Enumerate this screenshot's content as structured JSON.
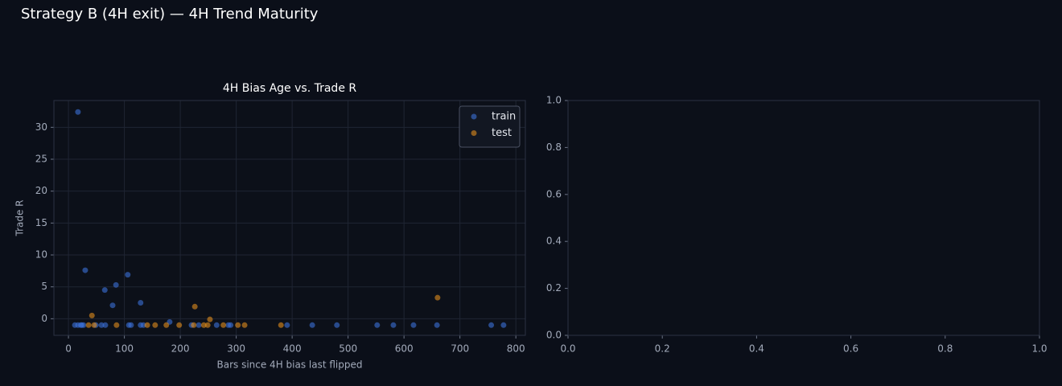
{
  "title": "Strategy B (4H exit) — 4H Trend Maturity",
  "chart_data": [
    {
      "type": "scatter",
      "title": "4H Bias Age vs. Trade R",
      "x_label": "Bars since 4H bias last flipped",
      "y_label": "Trade R",
      "xlim": [
        -26,
        817
      ],
      "ylim": [
        -2.6,
        34.2
      ],
      "xticks": [
        0,
        100,
        200,
        300,
        400,
        500,
        600,
        700,
        800
      ],
      "yticks": [
        0,
        5,
        10,
        15,
        20,
        25,
        30
      ],
      "grid": true,
      "legend": "upper right",
      "series": [
        {
          "name": "train",
          "color": "#3c72d8",
          "x": [
            11.5,
            17,
            22,
            24,
            27,
            49,
            59,
            66,
            108,
            112,
            129,
            134,
            220,
            233,
            265,
            286,
            290,
            391,
            436,
            480,
            552,
            581,
            617,
            659,
            756,
            778,
            17,
            30,
            65,
            85,
            79,
            106,
            129,
            181
          ],
          "values": [
            -1,
            -1,
            -1,
            -1,
            -1,
            -1,
            -1,
            -1,
            -1,
            -1,
            -1,
            -1,
            -1,
            -1,
            -1,
            -1,
            -1,
            -1,
            -1,
            -1,
            -1,
            -1,
            -1,
            -1,
            -1,
            -1,
            32.4,
            7.6,
            4.5,
            5.3,
            2.1,
            6.9,
            2.5,
            -0.5
          ]
        },
        {
          "name": "test",
          "color": "#e38e1c",
          "x": [
            36,
            46,
            86,
            141,
            155,
            175,
            198,
            224,
            242,
            249,
            277,
            303,
            315,
            380,
            42,
            226,
            253,
            660
          ],
          "values": [
            -1,
            -1,
            -1,
            -1,
            -1,
            -1,
            -1,
            -1,
            -1,
            -1,
            -1,
            -1,
            -1,
            -1,
            0.5,
            1.9,
            -0.1,
            3.3
          ]
        }
      ]
    },
    {
      "type": "scatter",
      "xlim": [
        0,
        1
      ],
      "ylim": [
        0,
        1
      ],
      "xticks": [
        {
          "value": 0,
          "label": "0.0"
        },
        {
          "value": 0.2,
          "label": "0.2"
        },
        {
          "value": 0.4,
          "label": "0.4"
        },
        {
          "value": 0.6,
          "label": "0.6"
        },
        {
          "value": 0.8,
          "label": "0.8"
        },
        {
          "value": 1,
          "label": "1.0"
        }
      ],
      "yticks": [
        {
          "value": 0,
          "label": "0.0"
        },
        {
          "value": 0.2,
          "label": "0.2"
        },
        {
          "value": 0.4,
          "label": "0.4"
        },
        {
          "value": 0.6,
          "label": "0.6"
        },
        {
          "value": 0.8,
          "label": "0.8"
        },
        {
          "value": 1,
          "label": "1.0"
        }
      ],
      "grid": false,
      "series": []
    }
  ]
}
